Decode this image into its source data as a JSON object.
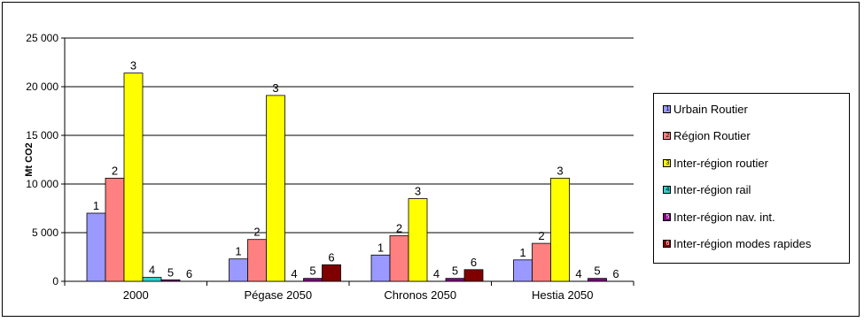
{
  "chart_data": {
    "type": "bar",
    "title": "",
    "xlabel": "",
    "ylabel": "Mt CO2",
    "ylim": [
      0,
      25000
    ],
    "yticks": [
      "0",
      "5 000",
      "10 000",
      "15 000",
      "20 000",
      "25 000"
    ],
    "ytick_values": [
      0,
      5000,
      10000,
      15000,
      20000,
      25000
    ],
    "grid": true,
    "legend_position": "right",
    "categories": [
      "2000",
      "Pégase 2050",
      "Chronos 2050",
      "Hestia 2050"
    ],
    "series": [
      {
        "name": "Urbain Routier",
        "label": "1",
        "color": "#9999ff",
        "values": [
          7000,
          2300,
          2700,
          2200
        ]
      },
      {
        "name": "Région Routier",
        "label": "2",
        "color": "#ff8080",
        "values": [
          10600,
          4300,
          4700,
          3900
        ]
      },
      {
        "name": "Inter-région routier",
        "label": "3",
        "color": "#ffff00",
        "values": [
          21400,
          19100,
          8500,
          10600
        ]
      },
      {
        "name": "Inter-région rail",
        "label": "4",
        "color": "#33cccc",
        "values": [
          400,
          0,
          0,
          0
        ]
      },
      {
        "name": "Inter-région nav. int.",
        "label": "5",
        "color": "#800080",
        "values": [
          150,
          300,
          300,
          300
        ]
      },
      {
        "name": "Inter-région modes rapides",
        "label": "6",
        "color": "#800000",
        "values": [
          0,
          1700,
          1200,
          0
        ]
      }
    ]
  }
}
